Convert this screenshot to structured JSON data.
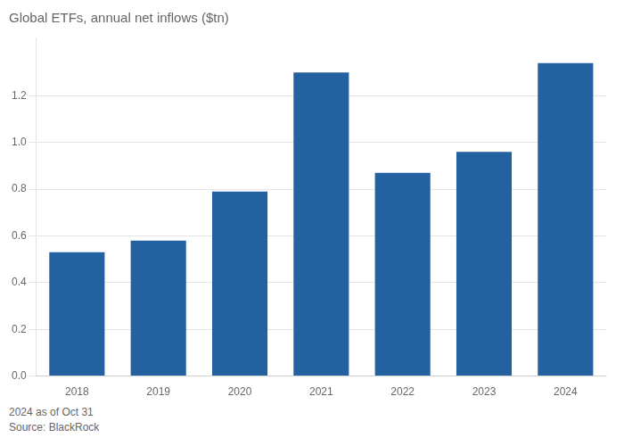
{
  "chart_data": {
    "type": "bar",
    "title": "Global ETFs, annual net inflows ($tn)",
    "categories": [
      "2018",
      "2019",
      "2020",
      "2021",
      "2022",
      "2023",
      "2024"
    ],
    "values": [
      0.53,
      0.58,
      0.79,
      1.3,
      0.87,
      0.96,
      1.34
    ],
    "color": "#2461a0",
    "ylim": [
      0,
      1.45
    ],
    "yticks": [
      {
        "value": 0,
        "label": "0.0"
      },
      0.2,
      0.4,
      0.6,
      0.8,
      {
        "value": 1.0,
        "label": "1.0"
      },
      1.2
    ],
    "grid": true,
    "annotations": [
      "2024 as of Oct 31",
      "Source: BlackRock"
    ]
  }
}
